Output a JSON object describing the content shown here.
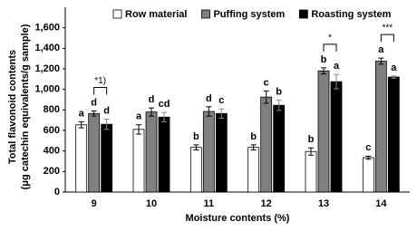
{
  "chart_data": {
    "type": "bar",
    "y_label_lines": [
      "Total flavonoid contents",
      "(μg catechin equivalents/g sample)"
    ],
    "x_label": "Moisture contents (%)",
    "categories": [
      "9",
      "10",
      "11",
      "12",
      "13",
      "14"
    ],
    "series": [
      {
        "name": "Row material",
        "color": "#ffffff",
        "values": [
          655,
          610,
          435,
          435,
          395,
          335
        ],
        "errors": [
          30,
          45,
          25,
          25,
          35,
          15
        ],
        "letters": [
          "a",
          "a",
          "b",
          "b",
          "b",
          "c"
        ]
      },
      {
        "name": "Puffing system",
        "color": "#808080",
        "values": [
          765,
          780,
          785,
          925,
          1180,
          1275
        ],
        "errors": [
          25,
          40,
          45,
          60,
          30,
          30
        ],
        "letters": [
          "d",
          "d",
          "d",
          "c",
          "b",
          "a"
        ]
      },
      {
        "name": "Roasting system",
        "color": "#000000",
        "values": [
          660,
          730,
          765,
          845,
          1075,
          1120
        ],
        "errors": [
          50,
          45,
          45,
          50,
          70,
          10
        ],
        "letters": [
          "d",
          "cd",
          "c",
          "b",
          "a",
          "a"
        ]
      }
    ],
    "annotations": [
      {
        "category": "9",
        "text": "*1)"
      },
      {
        "category": "13",
        "text": "*"
      },
      {
        "category": "14",
        "text": "***"
      }
    ],
    "ylim": [
      0,
      1800
    ],
    "yticks": [
      0,
      200,
      400,
      600,
      800,
      {
        "value": 1000,
        "label": "1,000"
      },
      {
        "value": 1200,
        "label": "1,200"
      },
      {
        "value": 1400,
        "label": "1,400"
      },
      {
        "value": 1600,
        "label": "1,600"
      }
    ],
    "legend": "top"
  }
}
